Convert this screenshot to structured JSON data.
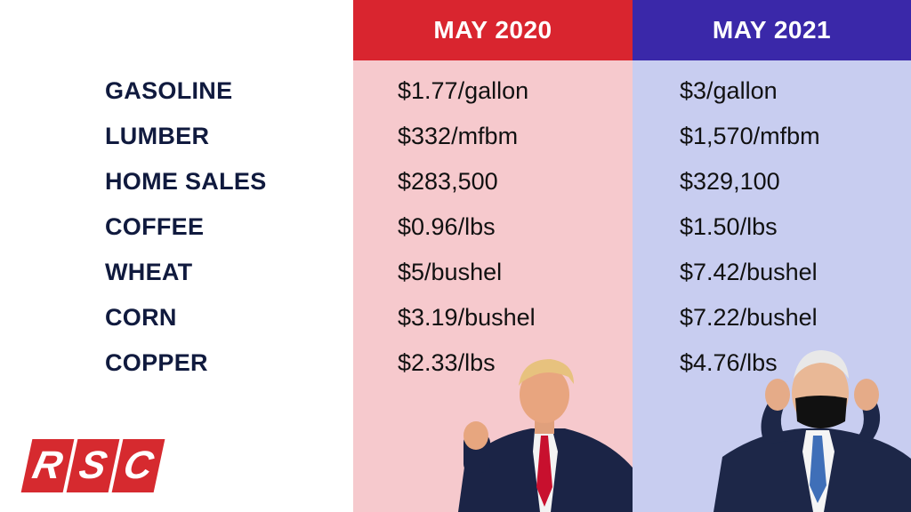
{
  "columns": {
    "left_header": "MAY 2020",
    "right_header": "MAY 2021"
  },
  "rows": [
    {
      "label": "GASOLINE",
      "may2020": "$1.77/gallon",
      "may2021": "$3/gallon"
    },
    {
      "label": "LUMBER",
      "may2020": "$332/mfbm",
      "may2021": "$1,570/mfbm"
    },
    {
      "label": "HOME SALES",
      "may2020": "$283,500",
      "may2021": "$329,100"
    },
    {
      "label": "COFFEE",
      "may2020": "$0.96/lbs",
      "may2021": "$1.50/lbs"
    },
    {
      "label": "WHEAT",
      "may2020": "$5/bushel",
      "may2021": "$7.42/bushel"
    },
    {
      "label": "CORN",
      "may2020": "$3.19/bushel",
      "may2021": "$7.22/bushel"
    },
    {
      "label": "COPPER",
      "may2020": "$2.33/lbs",
      "may2021": "$4.76/lbs"
    }
  ],
  "logo": {
    "letters": [
      "R",
      "S",
      "C"
    ]
  },
  "colors": {
    "left_header": "#d9252f",
    "right_header": "#3a28a9",
    "left_column": "#f6c9cd",
    "right_column": "#c8cdf0",
    "label_text": "#101a3e",
    "logo": "#d62a2f"
  }
}
